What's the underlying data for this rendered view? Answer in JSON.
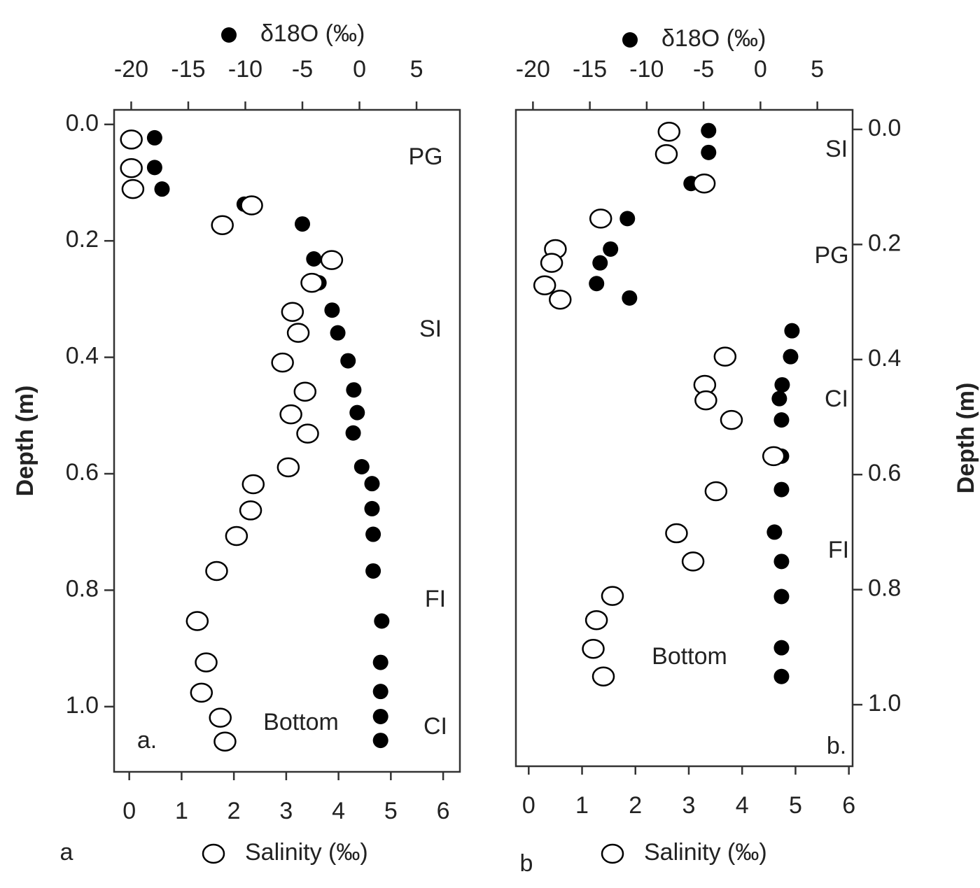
{
  "chart_data": [
    {
      "type": "scatter",
      "panel": "a",
      "ylabel": "Depth (m)",
      "ylim": [
        -0.025,
        1.112
      ],
      "yticks": [
        {
          "value": 0,
          "label": "0.0"
        },
        {
          "value": 0.2,
          "label": "0.2"
        },
        {
          "value": 0.4,
          "label": "0.4"
        },
        {
          "value": 0.6,
          "label": "0.6"
        },
        {
          "value": 0.8,
          "label": "0.8"
        },
        {
          "value": 1.0,
          "label": "1.0"
        }
      ],
      "xlim": [
        -0.29,
        6.32
      ],
      "xticks": [
        0,
        1,
        2,
        3,
        4,
        5,
        6
      ],
      "x2lim": [
        -21.5,
        8.8
      ],
      "x2ticks": [
        -20,
        -15,
        -10,
        -5,
        0,
        5
      ],
      "annotations": [
        "PG",
        "SI",
        "FI",
        "CI",
        "Bottom",
        "a."
      ],
      "series": [
        {
          "name": "δ18O (‰)",
          "axis": "x2",
          "color": "#000000",
          "x": [
            -17.95,
            -17.95,
            -17.3,
            -10.1,
            -5.0,
            -4.0,
            -3.55,
            -2.4,
            -1.9,
            -1.0,
            -0.5,
            -0.2,
            -0.55,
            0.2,
            1.1,
            1.1,
            1.2,
            1.2,
            1.95,
            1.85,
            1.85,
            1.85,
            1.85
          ],
          "values": [
            0.023,
            0.074,
            0.111,
            0.137,
            0.171,
            0.231,
            0.272,
            0.319,
            0.358,
            0.406,
            0.456,
            0.495,
            0.53,
            0.588,
            0.617,
            0.66,
            0.704,
            0.767,
            0.853,
            0.924,
            0.974,
            1.017,
            1.058
          ]
        },
        {
          "name": "Salinity (‰)",
          "axis": "x",
          "color": "#ffffff",
          "x": [
            0.04,
            0.04,
            0.07,
            2.34,
            1.78,
            3.87,
            3.49,
            3.12,
            3.23,
            2.93,
            3.36,
            3.09,
            3.41,
            3.04,
            2.37,
            2.32,
            2.05,
            1.67,
            1.3,
            1.47,
            1.38,
            1.74,
            1.83
          ],
          "values": [
            0.026,
            0.075,
            0.111,
            0.139,
            0.173,
            0.233,
            0.272,
            0.322,
            0.358,
            0.409,
            0.459,
            0.498,
            0.531,
            0.589,
            0.618,
            0.663,
            0.707,
            0.767,
            0.853,
            0.924,
            0.976,
            1.019,
            1.06
          ]
        }
      ]
    },
    {
      "type": "scatter",
      "panel": "b",
      "ylabel": "Depth (m)",
      "ylim": [
        -0.034,
        1.107
      ],
      "yticks": [
        {
          "value": 0,
          "label": "0.0"
        },
        {
          "value": 0.2,
          "label": "0.2"
        },
        {
          "value": 0.4,
          "label": "0.4"
        },
        {
          "value": 0.6,
          "label": "0.6"
        },
        {
          "value": 0.8,
          "label": "0.8"
        },
        {
          "value": 1.0,
          "label": "1.0"
        }
      ],
      "xlim": [
        -0.24,
        6.07
      ],
      "xticks": [
        0,
        1,
        2,
        3,
        4,
        5,
        6
      ],
      "x2lim": [
        -21.5,
        8.1
      ],
      "x2ticks": [
        -20,
        -15,
        -10,
        -5,
        0,
        5
      ],
      "annotations": [
        "SI",
        "PG",
        "CI",
        "FI",
        "Bottom",
        "b."
      ],
      "series": [
        {
          "name": "δ18O (‰)",
          "axis": "x2",
          "color": "#000000",
          "x": [
            -4.56,
            -4.56,
            -6.1,
            -11.7,
            -13.18,
            -14.1,
            -14.41,
            -11.51,
            2.77,
            2.65,
            1.91,
            1.66,
            1.85,
            1.85,
            1.85,
            1.23,
            1.85,
            1.85,
            1.85,
            1.85
          ],
          "values": [
            0.002,
            0.04,
            0.094,
            0.155,
            0.208,
            0.232,
            0.268,
            0.293,
            0.35,
            0.395,
            0.444,
            0.468,
            0.505,
            0.568,
            0.626,
            0.7,
            0.751,
            0.812,
            0.901,
            0.951
          ]
        },
        {
          "name": "Salinity (‰)",
          "axis": "x",
          "color": "#ffffff",
          "x": [
            2.63,
            2.58,
            3.29,
            1.35,
            0.5,
            0.43,
            0.3,
            0.59,
            3.68,
            3.3,
            3.32,
            3.8,
            4.59,
            3.51,
            2.77,
            3.08,
            1.57,
            1.27,
            1.21,
            1.4
          ],
          "values": [
            0.004,
            0.043,
            0.094,
            0.155,
            0.208,
            0.232,
            0.271,
            0.296,
            0.395,
            0.444,
            0.471,
            0.505,
            0.568,
            0.629,
            0.702,
            0.751,
            0.811,
            0.853,
            0.903,
            0.951
          ]
        }
      ]
    }
  ]
}
